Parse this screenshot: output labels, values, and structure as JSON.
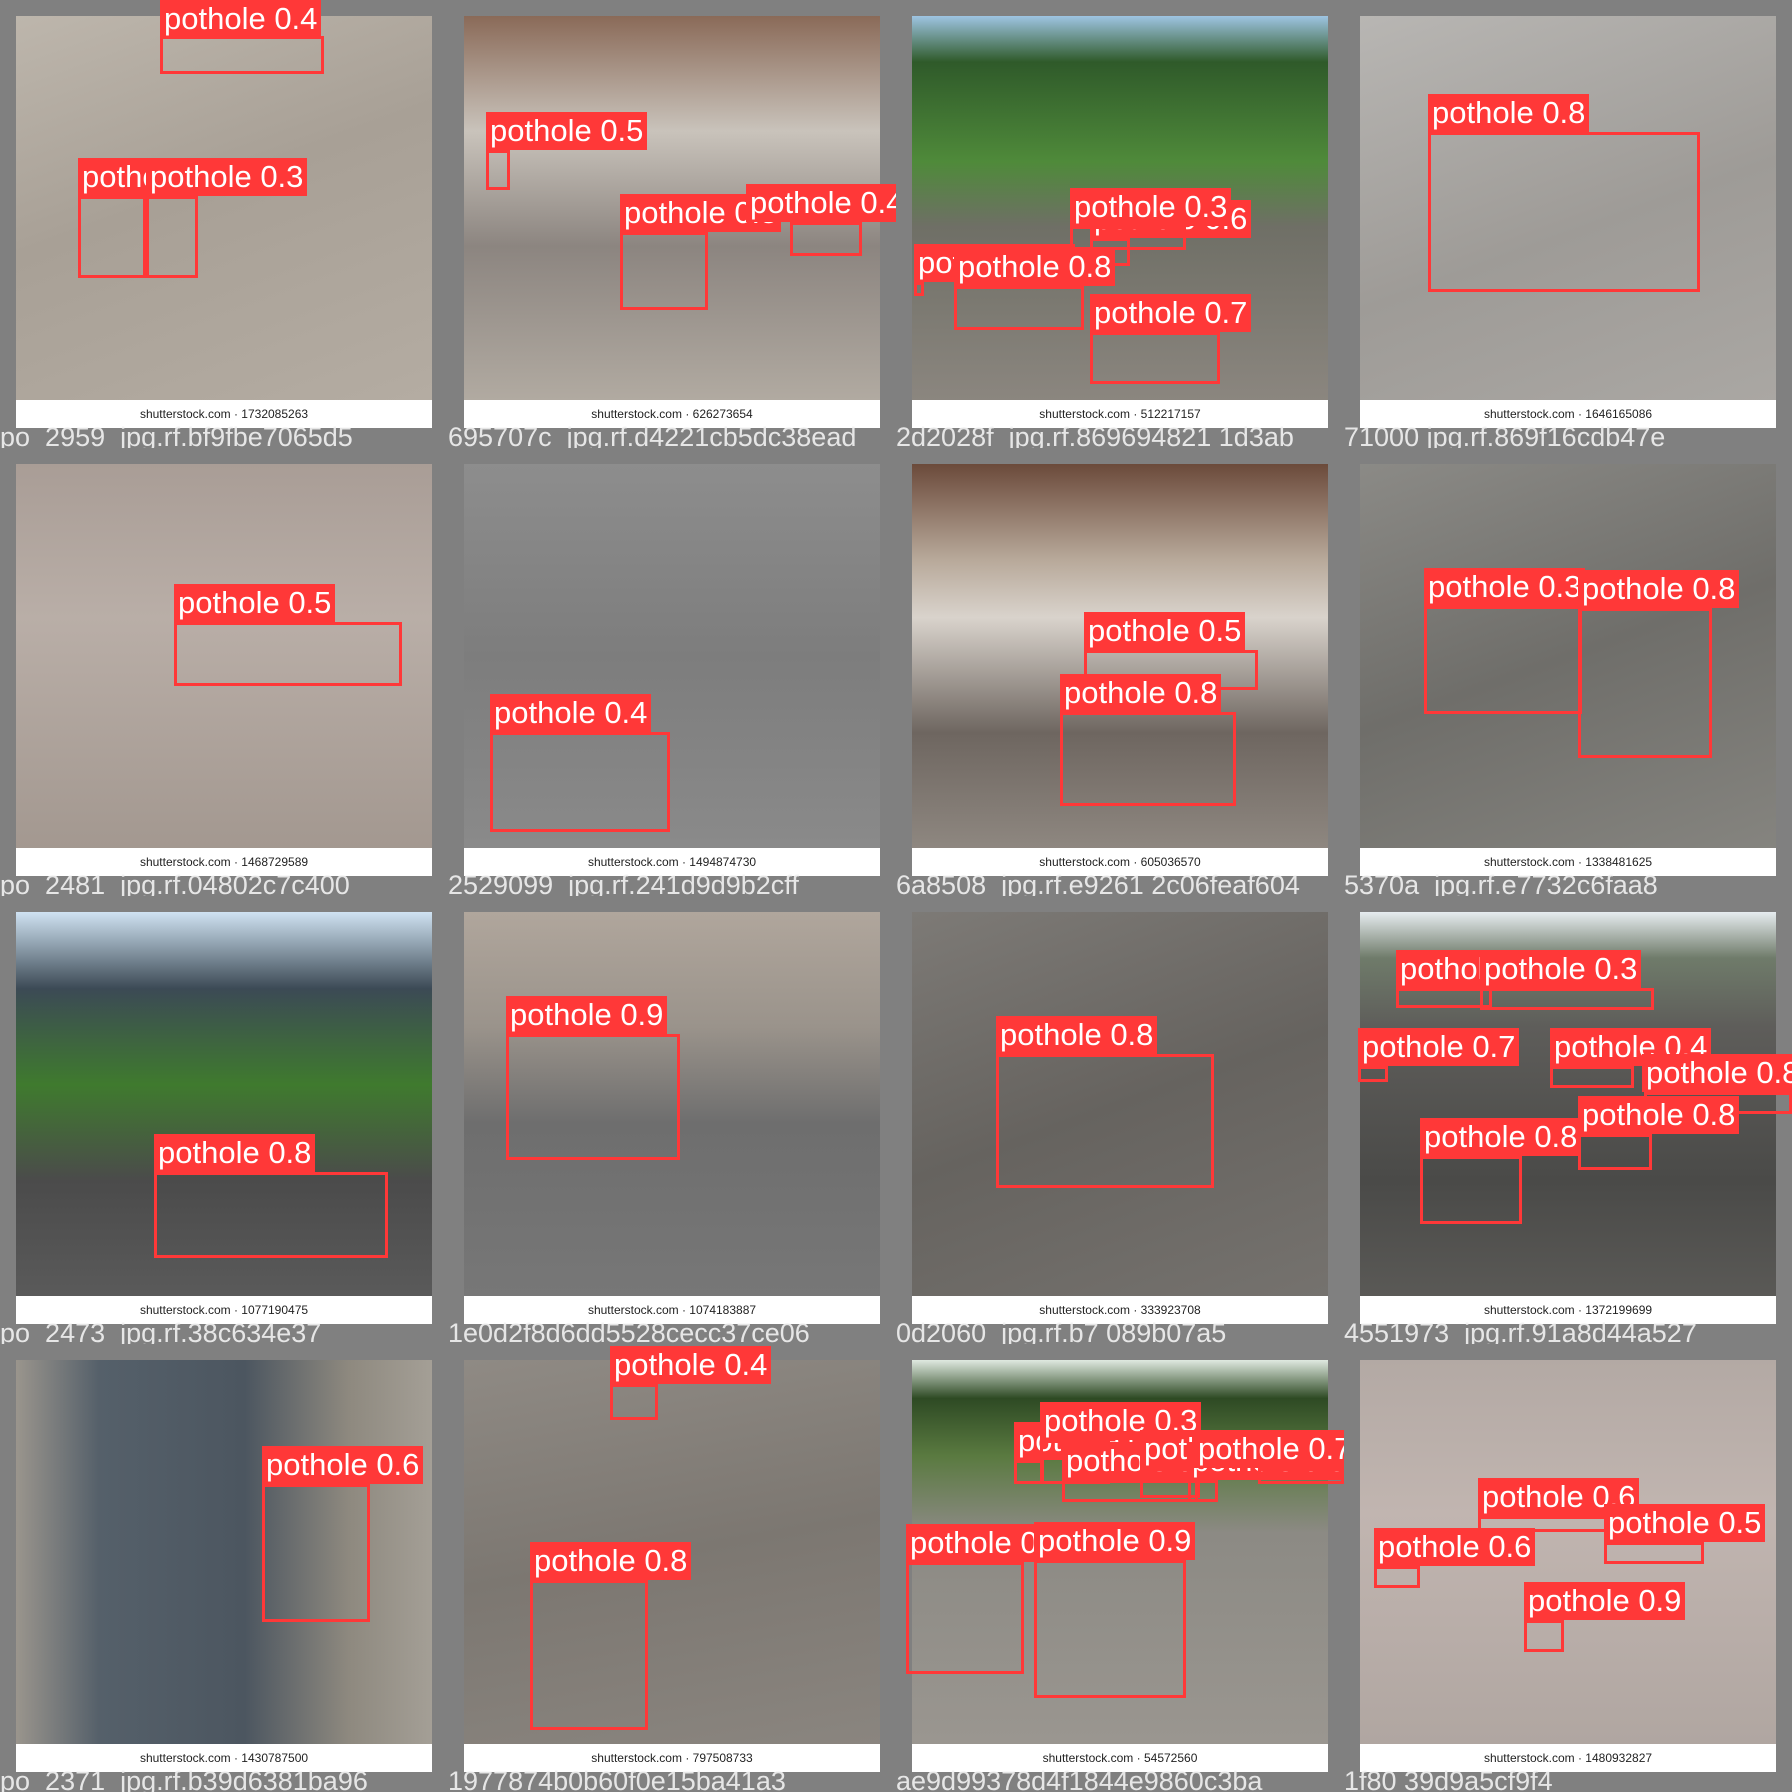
{
  "palette": {
    "frame": "#7f7f7f",
    "box": "#ff3838",
    "label_text": "#ffffff",
    "stock_bar": "#ffffff"
  },
  "tiles": [
    {
      "stock": "shutterstock.com · 1732085263",
      "filename": "po_2959_jpg.rf.bf9fbe7065d5",
      "bg": "linear-gradient(160deg,#bdb6ac 0%,#a8a096 45%,#b4aca2 100%)",
      "detections": [
        {
          "label": "pothole 0.4"
        },
        {
          "label": "pothole 0.3"
        },
        {
          "label": "pothole 0.3"
        }
      ]
    },
    {
      "stock": "shutterstock.com · 626273654",
      "filename": "695707c_jpg.rf.d4221cb5dc38ead",
      "bg": "linear-gradient(180deg,#8a6a58 0%,#c9c3bb 30%,#8c8580 60%,#b1aaa1 100%)",
      "detections": [
        {
          "label": "pothole 0.5"
        },
        {
          "label": "pothole 0.5"
        },
        {
          "label": "pothole 0.4"
        }
      ]
    },
    {
      "stock": "shutterstock.com · 512217157",
      "filename": "2d2028f_jpg.rf.869694821 1d3ab",
      "bg": "linear-gradient(180deg,#9ec4e2 0%,#2f5a2a 12%,#4f8a3a 38%,#6f6f66 55%,#8b867f 100%)",
      "detections": [
        {
          "label": "pothole 0.6"
        },
        {
          "label": "pothole 0.3"
        },
        {
          "label": "pothole 0.4"
        },
        {
          "label": "pothole 0.8"
        },
        {
          "label": "pothole 0.7"
        }
      ]
    },
    {
      "stock": "shutterstock.com · 1646165086",
      "filename": "71000 jpg.rf.869f16cdb47e",
      "bg": "linear-gradient(160deg,#b8b6b3 0%,#9e9b97 55%,#aaa7a3 100%)",
      "detections": [
        {
          "label": "pothole 0.8"
        }
      ]
    },
    {
      "stock": "shutterstock.com · 1468729589",
      "filename": "po_2481_jpg.rf.04802c7c400",
      "bg": "linear-gradient(180deg,#a99d96 0%,#b9aea7 40%,#a39890 100%)",
      "detections": [
        {
          "label": "pothole 0.5"
        }
      ]
    },
    {
      "stock": "shutterstock.com · 1494874730",
      "filename": "2529099_jpg.rf.241d9d9b2cff",
      "bg": "linear-gradient(180deg,#8d8d8d 0%,#7d7d7d 50%,#8a8a8a 100%)",
      "detections": [
        {
          "label": "pothole 0.4"
        }
      ]
    },
    {
      "stock": "shutterstock.com · 605036570",
      "filename": "6a8508_jpg.rf.e9261 2c06feaf604",
      "bg": "linear-gradient(180deg,#6b4a3a 0%,#b8a99a 25%,#d9d3cc 40%,#6e6660 70%,#8e8780 100%)",
      "detections": [
        {
          "label": "pothole 0.5"
        },
        {
          "label": "pothole 0.8"
        }
      ]
    },
    {
      "stock": "shutterstock.com · 1338481625",
      "filename": "5370a_jpg.rf.e7732c6faa8",
      "bg": "linear-gradient(160deg,#8b8a86 0%,#6f6e6a 50%,#85847f 100%)",
      "detections": [
        {
          "label": "pothole 0.3"
        },
        {
          "label": "pothole 0.8"
        }
      ]
    },
    {
      "stock": "shutterstock.com · 1077190475",
      "filename": "po_2473_jpg.rf.38c634e37",
      "bg": "linear-gradient(180deg,#cfe2f2 0%,#3c4a55 20%,#3f7a2e 45%,#4b4b4b 70%,#5a5a5a 100%)",
      "detections": [
        {
          "label": "pothole 0.8"
        }
      ]
    },
    {
      "stock": "shutterstock.com · 1074183887",
      "filename": "1e0d2f8d6dd5528cecc37ce06",
      "bg": "linear-gradient(180deg,#b0a69c 0%,#9a938b 30%,#6e6e6e 55%,#777777 100%)",
      "detections": [
        {
          "label": "pothole 0.9"
        }
      ]
    },
    {
      "stock": "shutterstock.com · 333923708",
      "filename": "0d2060_jpg.rf.b7 089b07a5",
      "bg": "linear-gradient(160deg,#7d7a76 0%,#66635f 50%,#75726e 100%)",
      "detections": [
        {
          "label": "pothole 0.8"
        }
      ]
    },
    {
      "stock": "shutterstock.com · 1372199699",
      "filename": "4551973_jpg.rf.91a8d44a527",
      "bg": "linear-gradient(180deg,#e6ecef 0%,#6f7b6a 12%,#5e5d5a 30%,#4a4a48 70%,#5a5956 100%)",
      "detections": [
        {
          "label": "pothole 0.3"
        },
        {
          "label": "pothole 0.3"
        },
        {
          "label": "pothole 0.7"
        },
        {
          "label": "pothole 0.4"
        },
        {
          "label": "pothole 0.8"
        },
        {
          "label": "pothole 0.8"
        },
        {
          "label": "pothole 0.8"
        }
      ]
    },
    {
      "stock": "shutterstock.com · 1430787500",
      "filename": "po_2371_jpg.rf.b39d6381ba96",
      "bg": "linear-gradient(90deg,#9a958d 0%,#55606a 20%,#4c5660 55%,#8e897f 80%,#a49f96 100%)",
      "detections": [
        {
          "label": "pothole 0.6"
        }
      ]
    },
    {
      "stock": "shutterstock.com · 797508733",
      "filename": "1977874b0b60f0e15ba41a3",
      "bg": "linear-gradient(170deg,#8f8a84 0%,#7c7771 50%,#8a857f 100%)",
      "detections": [
        {
          "label": "pothole 0.4"
        },
        {
          "label": "pothole 0.8"
        }
      ]
    },
    {
      "stock": "shutterstock.com · 54572560",
      "filename": "ae9d99378d4f1844e9860c3ba",
      "bg": "linear-gradient(180deg,#dfe9e0 0%,#2e4a24 10%,#5a7a40 25%,#8c8a84 45%,#9a9690 100%)",
      "detections": [
        {
          "label": "pothole 0.3"
        },
        {
          "label": "pothole 0.3"
        },
        {
          "label": "pothole 0.3"
        },
        {
          "label": "pothole 0.3"
        },
        {
          "label": "pothole 0.3"
        },
        {
          "label": "pothole 0.7"
        },
        {
          "label": "pothole 0.3"
        },
        {
          "label": "pothole 0.9"
        }
      ]
    },
    {
      "stock": "shutterstock.com · 1480932827",
      "filename": "1f80 39d9a5cf9f4",
      "bg": "linear-gradient(180deg,#b3a9a4 0%,#c1b5b0 40%,#b0a6a1 100%)",
      "detections": [
        {
          "label": "pothole 0.6"
        },
        {
          "label": "pothole 0.5"
        },
        {
          "label": "pothole 0.6"
        },
        {
          "label": "pothole 0.9"
        }
      ]
    }
  ]
}
